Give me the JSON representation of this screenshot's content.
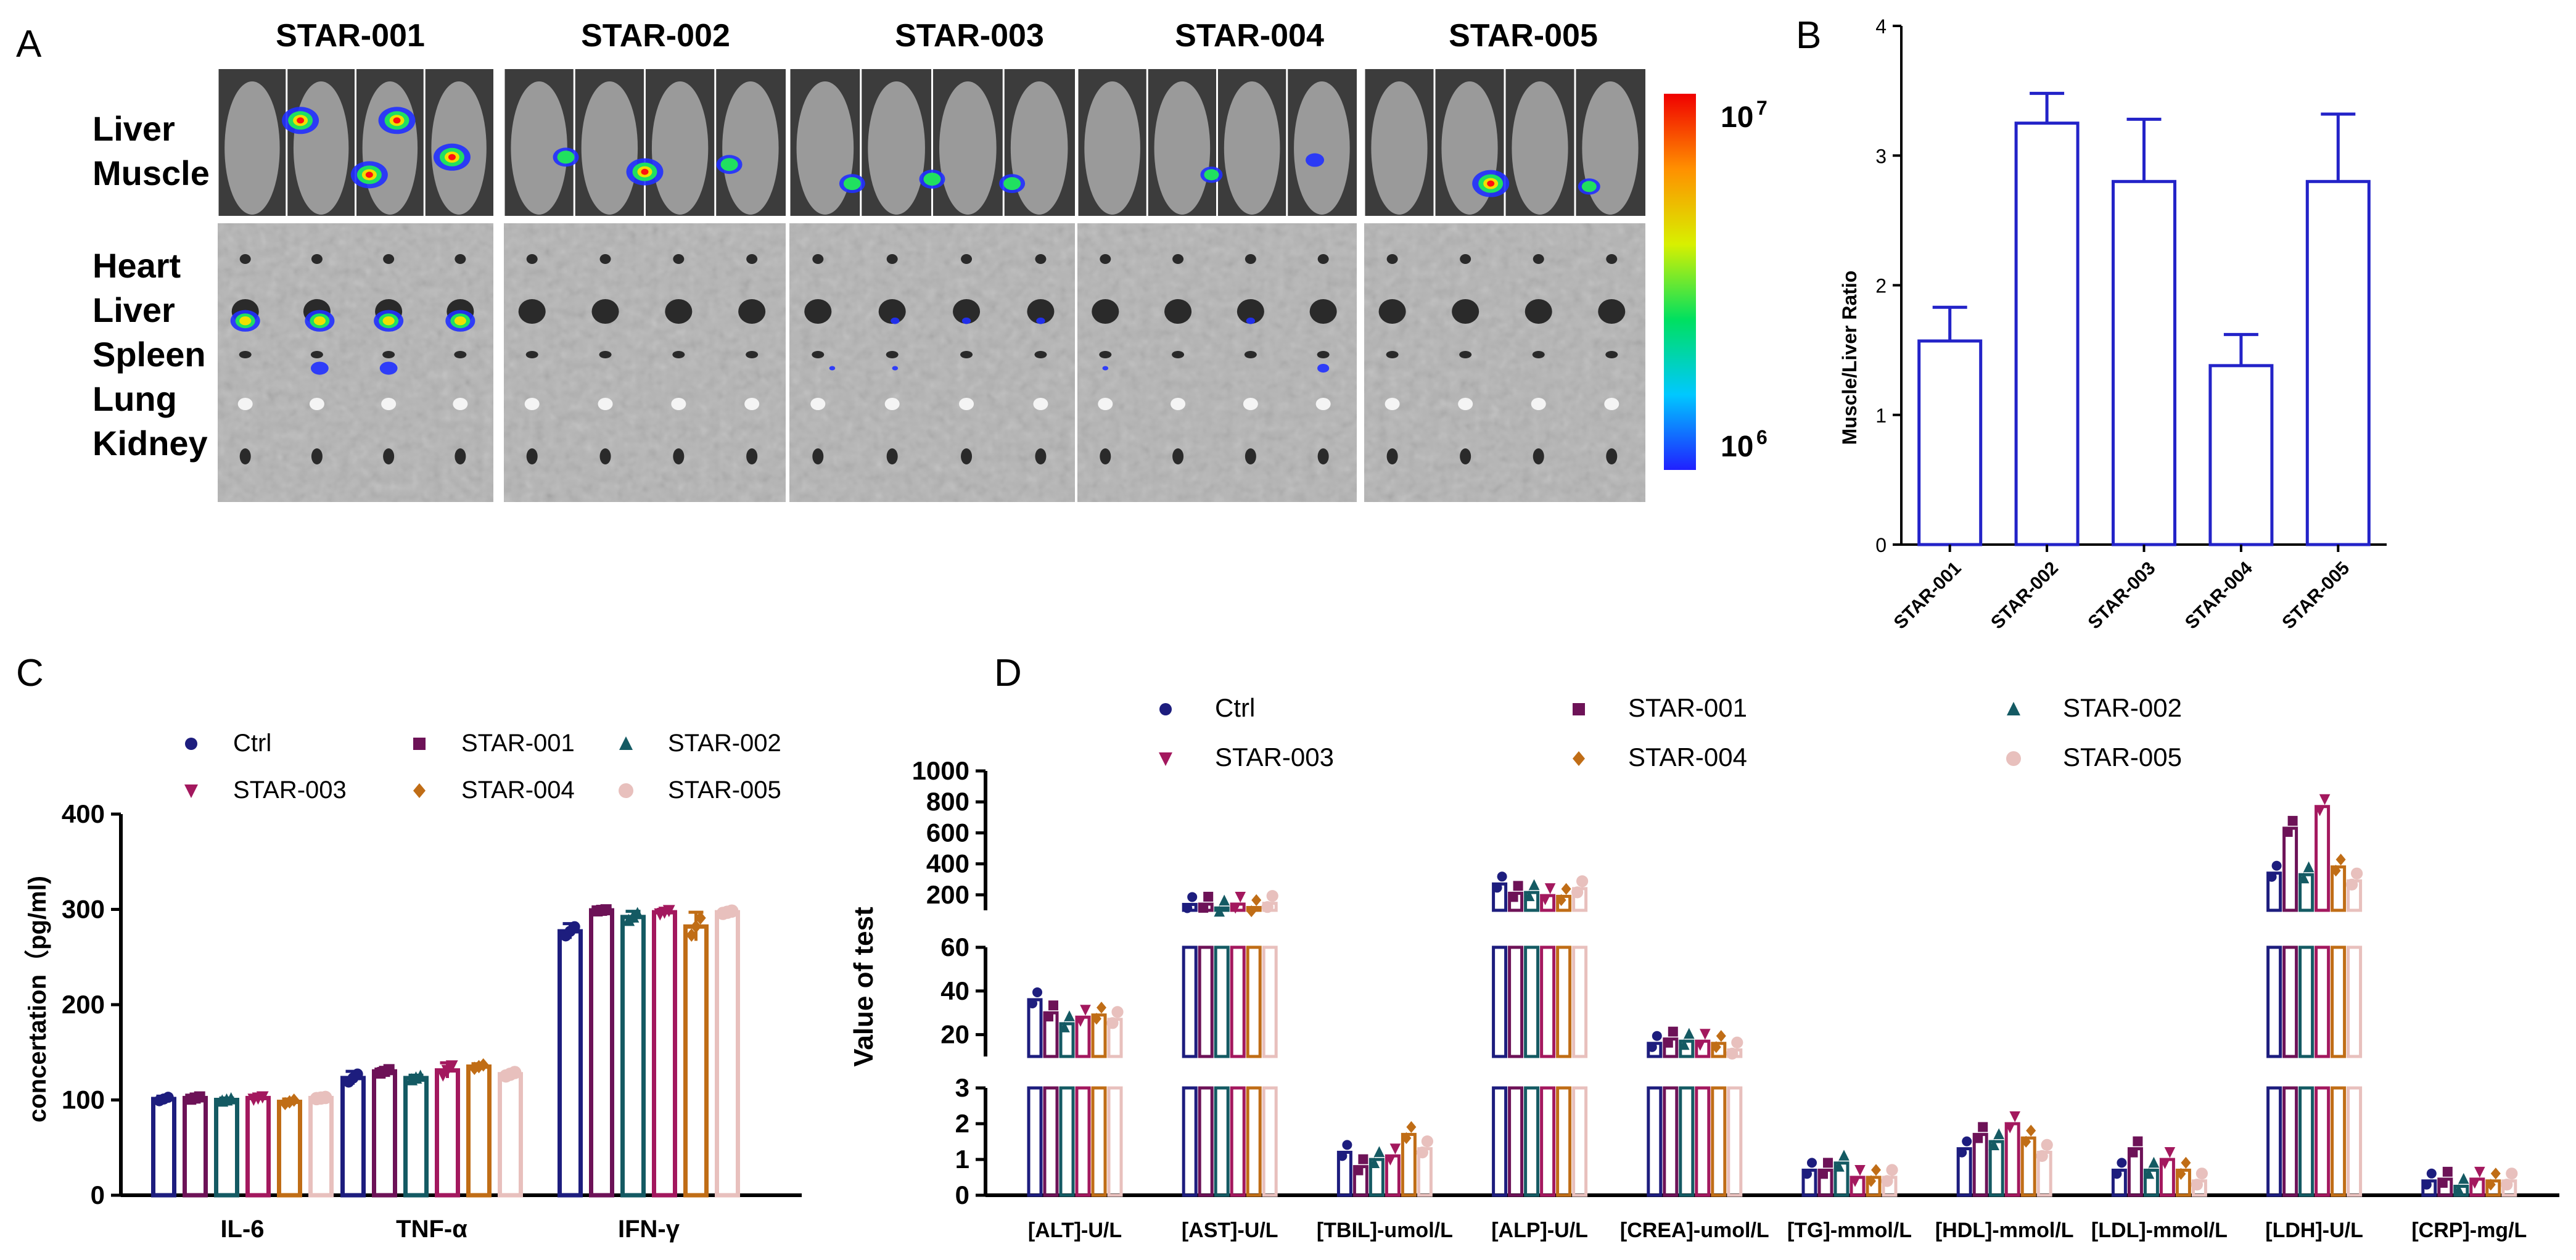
{
  "panel_labels": {
    "a": "A",
    "b": "B",
    "c": "C",
    "d": "D"
  },
  "panel_a": {
    "groups": [
      "STAR-001",
      "STAR-002",
      "STAR-003",
      "STAR-004",
      "STAR-005"
    ],
    "row_labels_top": [
      "Liver",
      "Muscle"
    ],
    "row_labels_bottom": [
      "Heart",
      "Liver",
      "Spleen",
      "Lung",
      "Kidney"
    ],
    "colorbar": {
      "max_label": "10",
      "max_exp": "7",
      "min_label": "10",
      "min_exp": "6"
    }
  },
  "colors": {
    "Ctrl": "#1d1d7e",
    "STAR-001": "#6d1257",
    "STAR-002": "#145a63",
    "STAR-003": "#a3185e",
    "STAR-004": "#c06d16",
    "STAR-005": "#e8c0bd",
    "panel_b": "#2323c8"
  },
  "chart_data": [
    {
      "panel": "B",
      "type": "bar",
      "title": "",
      "ylabel": "Muscle/Liver Ratio",
      "categories": [
        "STAR-001",
        "STAR-002",
        "STAR-003",
        "STAR-004",
        "STAR-005"
      ],
      "values": [
        1.57,
        3.25,
        2.8,
        1.38,
        2.8
      ],
      "errors": [
        0.26,
        0.23,
        0.48,
        0.24,
        0.52
      ],
      "ylim": [
        0,
        4
      ],
      "yticks": [
        "0",
        "1",
        "2",
        "3",
        "4"
      ]
    },
    {
      "panel": "C",
      "type": "bar",
      "ylabel": "concertation（pg/ml)",
      "categories": [
        "IL-6",
        "TNF-α",
        "IFN-γ"
      ],
      "ylim": [
        0,
        400
      ],
      "yticks": [
        "0",
        "100",
        "200",
        "300",
        "400"
      ],
      "legend": [
        "Ctrl",
        "STAR-001",
        "STAR-002",
        "STAR-003",
        "STAR-004",
        "STAR-005"
      ],
      "series": [
        {
          "name": "Ctrl",
          "values": [
            101,
            123,
            277
          ]
        },
        {
          "name": "STAR-001",
          "values": [
            102,
            130,
            299
          ]
        },
        {
          "name": "STAR-002",
          "values": [
            100,
            123,
            292
          ]
        },
        {
          "name": "STAR-003",
          "values": [
            102,
            131,
            297
          ]
        },
        {
          "name": "STAR-004",
          "values": [
            98,
            135,
            282
          ]
        },
        {
          "name": "STAR-005",
          "values": [
            102,
            127,
            297
          ]
        }
      ],
      "errors": [
        {
          "name": "Ctrl",
          "values": [
            3,
            7,
            8
          ]
        },
        {
          "name": "STAR-001",
          "values": [
            2,
            3,
            1
          ]
        },
        {
          "name": "STAR-002",
          "values": [
            2,
            3,
            6
          ]
        },
        {
          "name": "STAR-003",
          "values": [
            2,
            8,
            3
          ]
        },
        {
          "name": "STAR-004",
          "values": [
            3,
            3,
            15
          ]
        },
        {
          "name": "STAR-005",
          "values": [
            1,
            3,
            2
          ]
        }
      ]
    },
    {
      "panel": "D",
      "type": "bar",
      "ylabel": "Value of test",
      "axis_segments": [
        {
          "range": [
            0,
            3
          ],
          "ticks": [
            "0",
            "1",
            "2",
            "3"
          ]
        },
        {
          "range": [
            10,
            60
          ],
          "ticks": [
            "20",
            "40",
            "60"
          ]
        },
        {
          "range": [
            100,
            1000
          ],
          "ticks": [
            "200",
            "400",
            "600",
            "800",
            "1000"
          ]
        }
      ],
      "categories": [
        "[ALT]-U/L",
        "[AST]-U/L",
        "[TBIL]-umol/L",
        "[ALP]-U/L",
        "[CREA]-umol/L",
        "[TG]-mmol/L",
        "[HDL]-mmol/L",
        "[LDL]-mmol/L",
        "[LDH]-U/L",
        "[CRP]-mg/L"
      ],
      "legend": [
        "Ctrl",
        "STAR-001",
        "STAR-002",
        "STAR-003",
        "STAR-004",
        "STAR-005"
      ],
      "series": [
        {
          "name": "Ctrl",
          "values": [
            36,
            138,
            1.2,
            270,
            16,
            0.7,
            1.3,
            0.7,
            340,
            0.4
          ]
        },
        {
          "name": "STAR-001",
          "values": [
            30,
            140,
            0.8,
            210,
            18,
            0.7,
            1.7,
            1.3,
            630,
            0.45
          ]
        },
        {
          "name": "STAR-002",
          "values": [
            25,
            115,
            1.0,
            215,
            17,
            0.9,
            1.5,
            0.7,
            330,
            0.25
          ]
        },
        {
          "name": "STAR-003",
          "values": [
            28,
            140,
            1.1,
            195,
            17,
            0.5,
            2.0,
            1.0,
            770,
            0.45
          ]
        },
        {
          "name": "STAR-004",
          "values": [
            29,
            118,
            1.7,
            190,
            16,
            0.5,
            1.6,
            0.7,
            380,
            0.4
          ]
        },
        {
          "name": "STAR-005",
          "values": [
            27,
            145,
            1.3,
            240,
            13,
            0.5,
            1.2,
            0.4,
            290,
            0.4
          ]
        }
      ]
    }
  ]
}
